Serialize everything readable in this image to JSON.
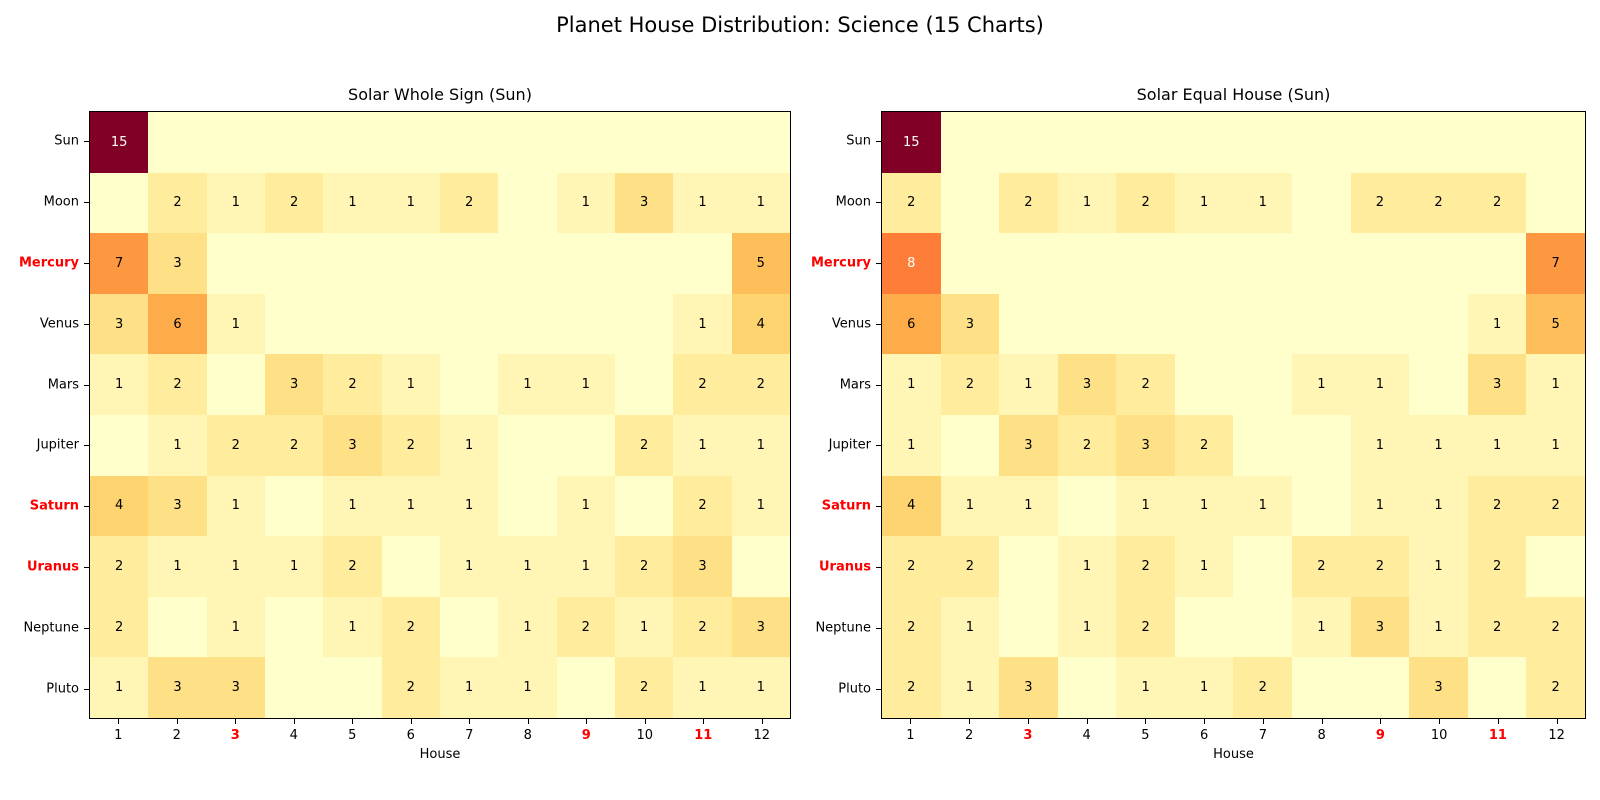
{
  "figure": {
    "title": "Planet House Distribution: Science (15 Charts)",
    "background": "#ffffff"
  },
  "style": {
    "colormap": "YlOrRd",
    "colormap_anchors": [
      "#ffffcc",
      "#ffeda0",
      "#fed976",
      "#feb24c",
      "#fd8d3c",
      "#fc4e2a",
      "#e31a1c",
      "#bd0026",
      "#800026"
    ],
    "annotation_dark": "#000000",
    "annotation_light": "#ffffff",
    "annotation_white_threshold": 7.5,
    "highlight_tick_color": "#ff0000",
    "tick_label_color": "#000000"
  },
  "chart_data": [
    {
      "type": "heatmap",
      "title": "Solar Whole Sign (Sun)",
      "xlabel": "House",
      "x_ticks": [
        "1",
        "2",
        "3",
        "4",
        "5",
        "6",
        "7",
        "8",
        "9",
        "10",
        "11",
        "12"
      ],
      "y_ticks": [
        "Sun",
        "Moon",
        "Mercury",
        "Venus",
        "Mars",
        "Jupiter",
        "Saturn",
        "Uranus",
        "Neptune",
        "Pluto"
      ],
      "highlighted_x_ticks": [
        "3",
        "9",
        "11"
      ],
      "highlighted_y_ticks": [
        "Mercury",
        "Saturn",
        "Uranus"
      ],
      "vmin": 0,
      "vmax": 15,
      "zero_cells_blank": true,
      "values": [
        [
          15,
          0,
          0,
          0,
          0,
          0,
          0,
          0,
          0,
          0,
          0,
          0
        ],
        [
          0,
          2,
          1,
          2,
          1,
          1,
          2,
          0,
          1,
          3,
          1,
          1
        ],
        [
          7,
          3,
          0,
          0,
          0,
          0,
          0,
          0,
          0,
          0,
          0,
          5
        ],
        [
          3,
          6,
          1,
          0,
          0,
          0,
          0,
          0,
          0,
          0,
          1,
          4
        ],
        [
          1,
          2,
          0,
          3,
          2,
          1,
          0,
          1,
          1,
          0,
          2,
          2
        ],
        [
          0,
          1,
          2,
          2,
          3,
          2,
          1,
          0,
          0,
          2,
          1,
          1
        ],
        [
          4,
          3,
          1,
          0,
          1,
          1,
          1,
          0,
          1,
          0,
          2,
          1
        ],
        [
          2,
          1,
          1,
          1,
          2,
          0,
          1,
          1,
          1,
          2,
          3,
          0
        ],
        [
          2,
          0,
          1,
          0,
          1,
          2,
          0,
          1,
          2,
          1,
          2,
          3
        ],
        [
          1,
          3,
          3,
          0,
          0,
          2,
          1,
          1,
          0,
          2,
          1,
          1
        ]
      ]
    },
    {
      "type": "heatmap",
      "title": "Solar Equal House (Sun)",
      "xlabel": "House",
      "x_ticks": [
        "1",
        "2",
        "3",
        "4",
        "5",
        "6",
        "7",
        "8",
        "9",
        "10",
        "11",
        "12"
      ],
      "y_ticks": [
        "Sun",
        "Moon",
        "Mercury",
        "Venus",
        "Mars",
        "Jupiter",
        "Saturn",
        "Uranus",
        "Neptune",
        "Pluto"
      ],
      "highlighted_x_ticks": [
        "3",
        "9",
        "11"
      ],
      "highlighted_y_ticks": [
        "Mercury",
        "Saturn",
        "Uranus"
      ],
      "vmin": 0,
      "vmax": 15,
      "zero_cells_blank": true,
      "values": [
        [
          15,
          0,
          0,
          0,
          0,
          0,
          0,
          0,
          0,
          0,
          0,
          0
        ],
        [
          2,
          0,
          2,
          1,
          2,
          1,
          1,
          0,
          2,
          2,
          2,
          0
        ],
        [
          8,
          0,
          0,
          0,
          0,
          0,
          0,
          0,
          0,
          0,
          0,
          7
        ],
        [
          6,
          3,
          0,
          0,
          0,
          0,
          0,
          0,
          0,
          0,
          1,
          5
        ],
        [
          1,
          2,
          1,
          3,
          2,
          0,
          0,
          1,
          1,
          0,
          3,
          1
        ],
        [
          1,
          0,
          3,
          2,
          3,
          2,
          0,
          0,
          1,
          1,
          1,
          1
        ],
        [
          4,
          1,
          1,
          0,
          1,
          1,
          1,
          0,
          1,
          1,
          2,
          2
        ],
        [
          2,
          2,
          0,
          1,
          2,
          1,
          0,
          2,
          2,
          1,
          2,
          0
        ],
        [
          2,
          1,
          0,
          1,
          2,
          0,
          0,
          1,
          3,
          1,
          2,
          2
        ],
        [
          2,
          1,
          3,
          0,
          1,
          1,
          2,
          0,
          0,
          3,
          0,
          2
        ]
      ]
    }
  ]
}
